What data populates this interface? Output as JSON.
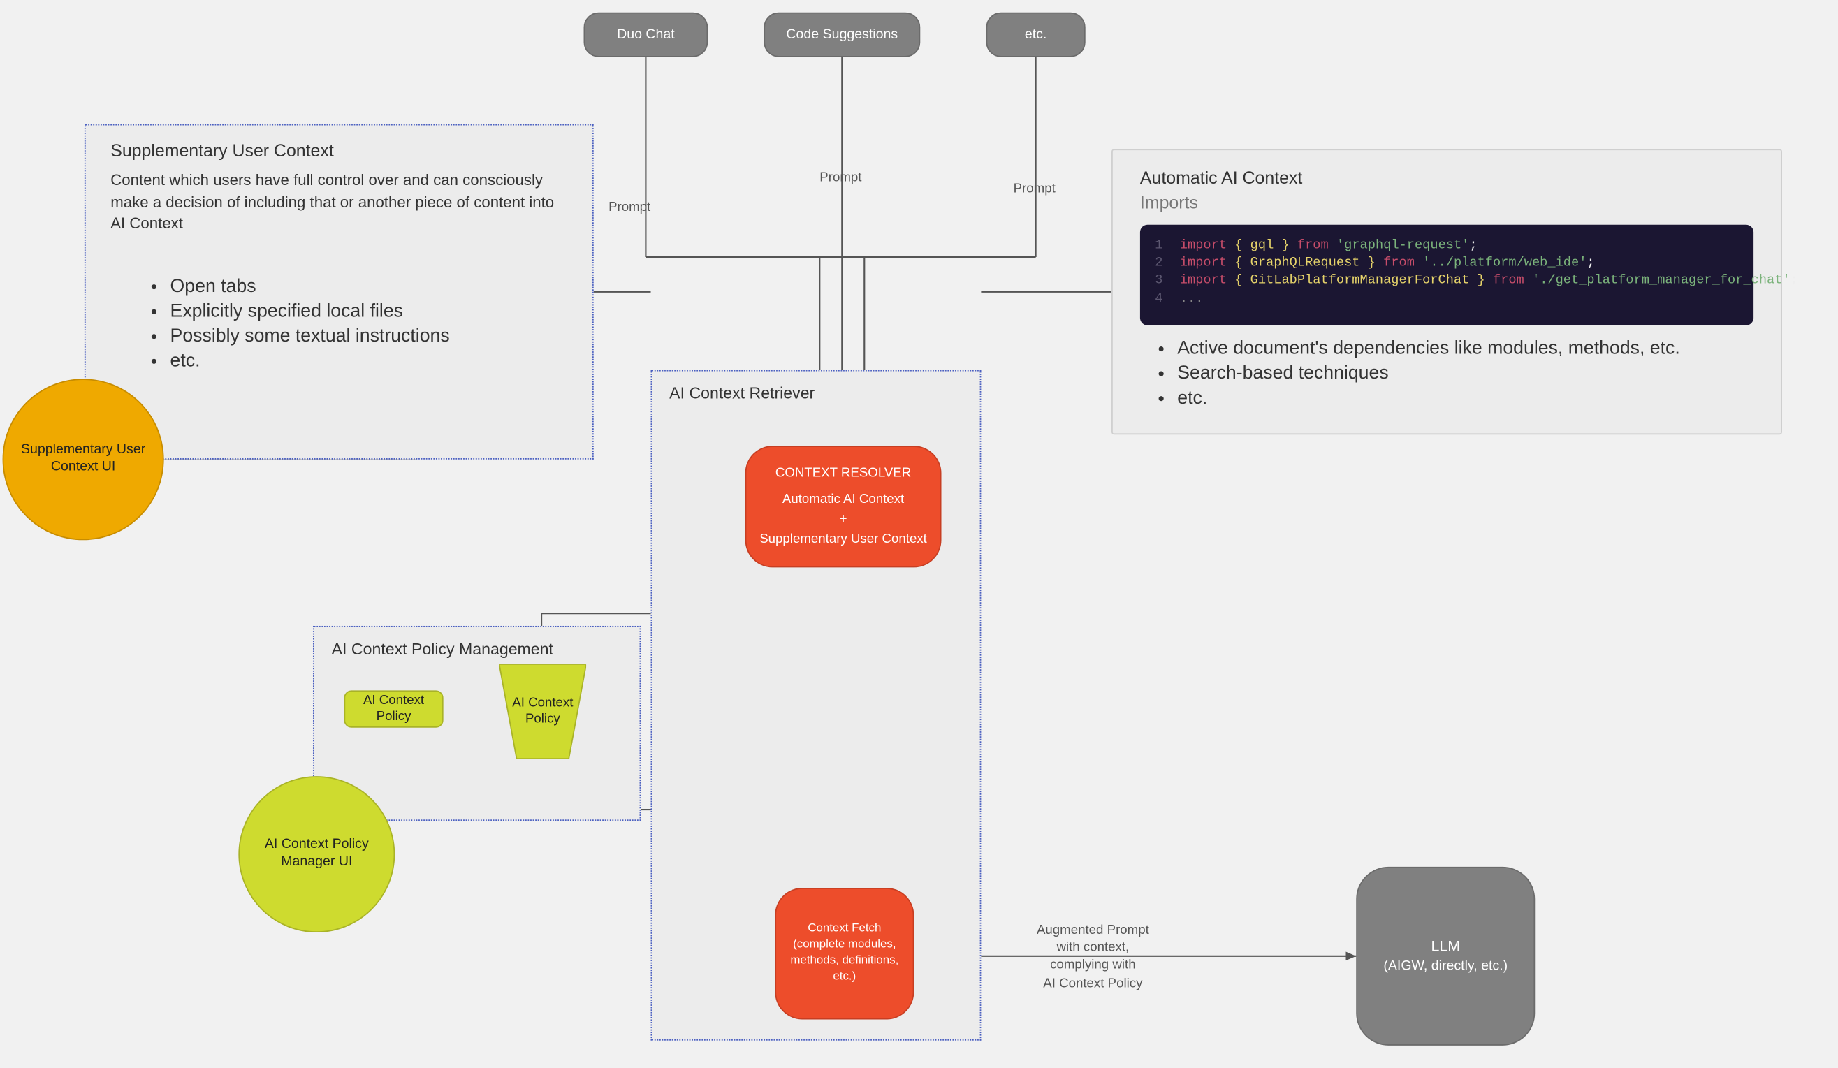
{
  "colors": {
    "background": "#f1f1f1",
    "panel_bg": "#ececec",
    "panel_border_dashed": "#4a5fc1",
    "top_node_fill": "#808080",
    "top_node_text": "#ffffff",
    "resolver_fill": "#ed4d2b",
    "lime_fill": "#cedb2f",
    "orange_fill": "#efa900",
    "code_bg": "#1b1632",
    "edge_stroke": "#555555",
    "text": "#333333"
  },
  "top_nodes": {
    "duo": "Duo Chat",
    "code": "Code Suggestions",
    "etc": "etc."
  },
  "prompt_label": "Prompt",
  "user_context_panel": {
    "title": "Supplementary User Context",
    "body": "Content which users have full control over and can consciously make a decision of including that or another piece of content into AI Context",
    "bullets": [
      "Open tabs",
      "Explicitly specified local files",
      "Possibly some textual instructions",
      "etc."
    ]
  },
  "supp_circle": "Supplementary User Context UI",
  "retriever_title": "AI Context Retriever",
  "resolver": {
    "heading": "CONTEXT RESOLVER",
    "line1": "Automatic AI Context",
    "plus": "+",
    "line2": "Supplementary User Context"
  },
  "policy_panel_title": "AI Context Policy Management",
  "policy_box": "AI Context Policy",
  "policy_trap": "AI Context Policy",
  "policy_circle": "AI Context Policy Manager UI",
  "fetch": {
    "line1": "Context Fetch",
    "line2": "(complete modules, methods, definitions, etc.)"
  },
  "aug_prompt": {
    "l1": "Augmented Prompt",
    "l2": "with context,",
    "l3": "complying with",
    "l4": "AI Context Policy"
  },
  "llm": {
    "l1": "LLM",
    "l2": "(AIGW, directly, etc.)"
  },
  "auto_panel": {
    "title": "Automatic AI Context",
    "subtitle": "Imports",
    "code": [
      {
        "n": "1",
        "kw1": "import",
        "sym": "{ gql }",
        "kw2": "from",
        "str": "'graphql-request'",
        "tail": ";"
      },
      {
        "n": "2",
        "kw1": "import",
        "sym": "{ GraphQLRequest }",
        "kw2": "from",
        "str": "'../platform/web_ide'",
        "tail": ";"
      },
      {
        "n": "3",
        "kw1": "import",
        "sym": "{ GitLabPlatformManagerForChat }",
        "kw2": "from",
        "str": "'./get_platform_manager_for_chat'",
        "tail": ";"
      },
      {
        "n": "4",
        "plain": "..."
      }
    ],
    "bullets": [
      "Active document's dependencies like modules, methods, etc.",
      "Search-based techniques",
      "etc."
    ]
  },
  "edges": {
    "arrow_color": "#555555",
    "promptBarY": 207,
    "promptJoinX": 660,
    "resolverTopY": 359,
    "duoX": 520,
    "codeX": 678,
    "etcX": 834,
    "suppCircleRightX": 132,
    "suppCircleY": 370,
    "autoPanelLeftX": 895,
    "retrieverLeftX": 524,
    "retrieverUserLineY": 235,
    "resolverBottomY": 457,
    "policyBoxRightX": 357,
    "policyTrapLeftX": 403,
    "policyLineY": 571,
    "policyTrapBottomY": 611,
    "fetchTopY": 715,
    "fetchCenterX": 680,
    "policyDownX": 436,
    "policyTurnY": 652,
    "fetchRightX": 736,
    "llmLeftX": 1092,
    "augLineY": 770
  },
  "fonts": {
    "base": 12,
    "panel_title": 14,
    "bullets": 15,
    "small": 10.5,
    "tiny": 9.5
  }
}
